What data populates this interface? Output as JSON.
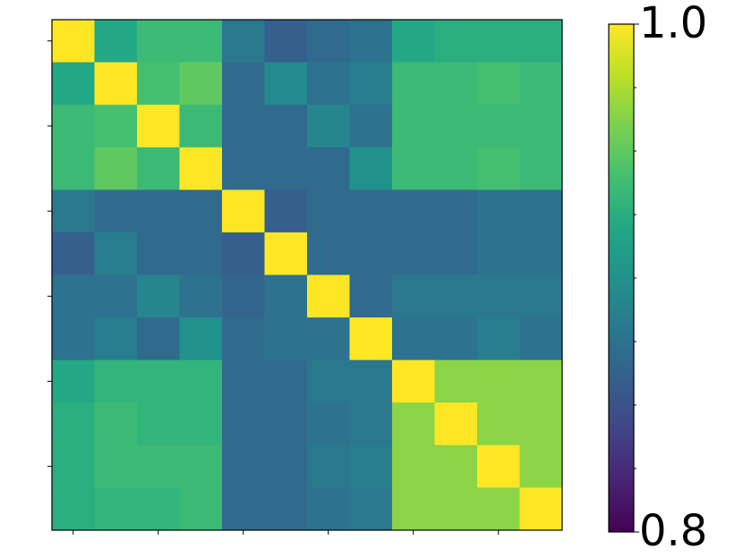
{
  "chart_data": {
    "type": "heatmap",
    "colormap": "viridis",
    "z": [
      [
        1,
        0.92,
        0.935,
        0.935,
        0.88,
        0.86,
        0.87,
        0.875,
        0.92,
        0.925,
        0.925,
        0.925
      ],
      [
        0.92,
        1,
        0.94,
        0.95,
        0.87,
        0.895,
        0.875,
        0.885,
        0.935,
        0.935,
        0.94,
        0.935
      ],
      [
        0.935,
        0.94,
        1,
        0.935,
        0.87,
        0.87,
        0.89,
        0.875,
        0.935,
        0.935,
        0.935,
        0.935
      ],
      [
        0.935,
        0.95,
        0.935,
        1,
        0.87,
        0.87,
        0.87,
        0.9,
        0.935,
        0.935,
        0.94,
        0.935
      ],
      [
        0.88,
        0.87,
        0.87,
        0.87,
        1,
        0.86,
        0.87,
        0.87,
        0.87,
        0.87,
        0.875,
        0.875
      ],
      [
        0.86,
        0.885,
        0.87,
        0.87,
        0.86,
        1,
        0.87,
        0.87,
        0.87,
        0.87,
        0.875,
        0.875
      ],
      [
        0.875,
        0.875,
        0.89,
        0.875,
        0.865,
        0.875,
        1,
        0.87,
        0.88,
        0.88,
        0.88,
        0.88
      ],
      [
        0.875,
        0.885,
        0.87,
        0.9,
        0.87,
        0.875,
        0.875,
        1,
        0.875,
        0.875,
        0.885,
        0.875
      ],
      [
        0.92,
        0.93,
        0.93,
        0.93,
        0.87,
        0.87,
        0.88,
        0.88,
        1,
        0.965,
        0.965,
        0.965
      ],
      [
        0.925,
        0.935,
        0.93,
        0.93,
        0.87,
        0.87,
        0.875,
        0.88,
        0.965,
        1,
        0.965,
        0.965
      ],
      [
        0.925,
        0.935,
        0.935,
        0.935,
        0.87,
        0.87,
        0.88,
        0.885,
        0.965,
        0.965,
        1,
        0.965
      ],
      [
        0.925,
        0.93,
        0.93,
        0.935,
        0.87,
        0.87,
        0.875,
        0.88,
        0.965,
        0.965,
        0.965,
        1
      ]
    ],
    "xlim": [
      -0.5,
      11.5
    ],
    "ylim": [
      -0.5,
      11.5
    ],
    "xticks": [
      0,
      2,
      4,
      6,
      8,
      10
    ],
    "yticks": [
      0,
      2,
      4,
      6,
      8,
      10
    ],
    "zlim": [
      0.8,
      1.0
    ],
    "colorbar_ticks": [
      0.8,
      {
        "value": 1.0,
        "label": "1.0"
      }
    ],
    "colorbar_minor_ticks": [
      0.825,
      0.85,
      0.875,
      0.9,
      0.925,
      0.95,
      0.975
    ]
  }
}
